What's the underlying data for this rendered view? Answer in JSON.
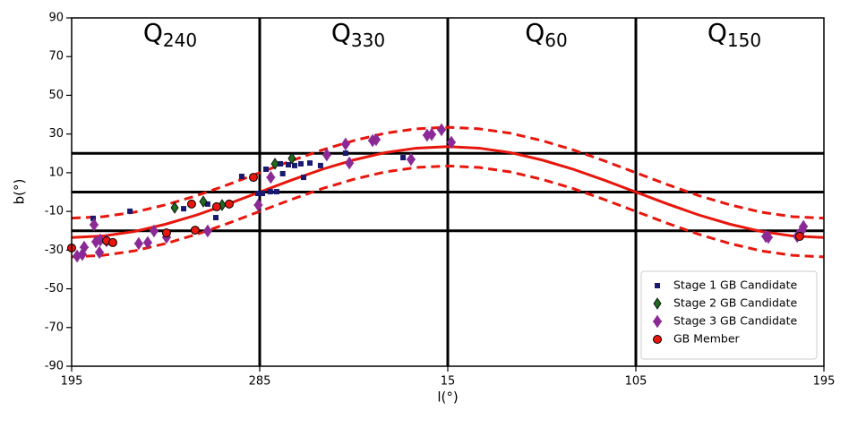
{
  "chart_data": {
    "type": "scatter",
    "xlabel": "l(°)",
    "ylabel": "b(°)",
    "xlim": [
      195,
      555
    ],
    "xticks": [
      195,
      285,
      {
        "value": 375,
        "label": "15"
      },
      {
        "value": 465,
        "label": "105"
      },
      {
        "value": 555,
        "label": "195"
      }
    ],
    "ylim": [
      -90,
      90
    ],
    "yticks": [
      -90,
      -70,
      -50,
      -30,
      -10,
      10,
      30,
      50,
      70,
      90
    ],
    "hlines": [
      20,
      0,
      -20
    ],
    "vlines": [
      285,
      375,
      465
    ],
    "regions": [
      {
        "main": "Q",
        "sub": "240"
      },
      {
        "main": "Q",
        "sub": "330"
      },
      {
        "main": "Q",
        "sub": "60"
      },
      {
        "main": "Q",
        "sub": "150"
      }
    ],
    "curve_x": [
      195,
      210,
      225,
      240,
      255,
      270,
      285,
      300,
      315,
      330,
      345,
      360,
      375,
      390,
      405,
      420,
      435,
      450,
      465,
      480,
      495,
      510,
      525,
      540,
      555
    ],
    "curves": [
      {
        "color": "#e8160c",
        "dashed": false,
        "values": [
          -23.5,
          -22.7,
          -20.4,
          -16.6,
          -11.8,
          -6.1,
          0,
          6.1,
          11.8,
          16.6,
          20.4,
          22.7,
          23.5,
          22.7,
          20.4,
          16.6,
          11.8,
          6.1,
          0,
          -6.1,
          -11.8,
          -16.6,
          -20.4,
          -22.7,
          -23.5
        ]
      },
      {
        "color": "#e8160c",
        "dashed": true,
        "values": [
          -13.5,
          -12.7,
          -10.4,
          -6.6,
          -1.8,
          3.9,
          10,
          16.1,
          21.8,
          26.6,
          30.4,
          32.7,
          33.5,
          32.7,
          30.4,
          26.6,
          21.8,
          16.1,
          10,
          3.9,
          -1.8,
          -6.6,
          -10.4,
          -12.7,
          -13.5
        ]
      },
      {
        "color": "#e8160c",
        "dashed": true,
        "values": [
          -33.5,
          -32.7,
          -30.4,
          -26.6,
          -21.8,
          -16.1,
          -10,
          -3.9,
          1.8,
          6.6,
          10.4,
          12.7,
          13.5,
          12.7,
          10.4,
          6.6,
          1.8,
          -3.9,
          -10,
          -16.1,
          -21.8,
          -26.6,
          -30.4,
          -32.7,
          -33.5
        ]
      }
    ],
    "legend": "lower right",
    "series": [
      {
        "name": "Stage 1 GB Candidate",
        "color": "#191970",
        "marker": "square",
        "x": [
          205.3,
          222.9,
          248.6,
          260.1,
          264,
          276.4,
          284.1,
          286.3,
          288,
          290.1,
          293.1,
          294.9,
          296,
          298.7,
          301.7,
          304.7,
          306,
          309,
          314.1,
          326.1,
          353.6
        ],
        "values": [
          -13.6,
          -9.9,
          -8.6,
          -6.2,
          -13.2,
          8.1,
          -0.7,
          -0.7,
          11.8,
          0.2,
          0.2,
          14.6,
          9.5,
          14.1,
          13.7,
          14.6,
          7.6,
          15,
          13.7,
          20.1,
          17.8
        ]
      },
      {
        "name": "Stage 2 GB Candidate",
        "color": "#1f6b1f",
        "marker": "diamond",
        "x": [
          244.3,
          258,
          267,
          292.3,
          300.4
        ],
        "values": [
          -8.1,
          -4.9,
          -6.7,
          14.6,
          17.4
        ]
      },
      {
        "name": "Stage 3 GB Candidate",
        "color": "#8b2a96",
        "marker": "plus",
        "x": [
          197.6,
          200.1,
          201,
          205.7,
          206.6,
          208.3,
          208.7,
          211.7,
          227.1,
          231.4,
          234.4,
          240.4,
          260.1,
          284.3,
          290.3,
          317.1,
          326.1,
          327.9,
          339,
          340.7,
          357.4,
          365.1,
          367.3,
          372,
          376.7,
          527.2,
          528.4,
          542.2,
          544.3,
          545.2
        ],
        "values": [
          -33.1,
          -32.2,
          -28.5,
          -16.9,
          -25.7,
          -31.2,
          -24.8,
          -25.2,
          -26.6,
          -26.1,
          -20.1,
          -23.4,
          -20.1,
          -6.7,
          7.6,
          19.2,
          24.8,
          15,
          26.6,
          27.1,
          16.9,
          29.4,
          29.8,
          32.2,
          25.7,
          -22.9,
          -23.4,
          -22.9,
          -20.1,
          -17.8
        ]
      },
      {
        "name": "GB Member",
        "color": "#e8160c",
        "marker": "circle",
        "x": [
          195,
          211.7,
          214.7,
          240.4,
          252.4,
          254.1,
          264.4,
          270.4,
          282,
          543.4
        ],
        "values": [
          -28.9,
          -25.2,
          -26.1,
          -21.1,
          -6.2,
          -19.7,
          -7.6,
          -6.2,
          7.6,
          -22.9
        ]
      }
    ]
  }
}
